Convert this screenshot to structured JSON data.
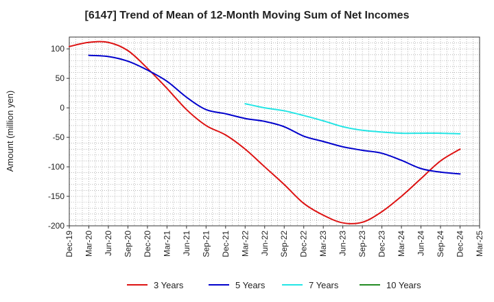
{
  "chart_data": {
    "type": "line",
    "title": "[6147]  Trend of Mean of 12-Month Moving Sum of Net Incomes",
    "xlabel": "",
    "ylabel": "Amount (million yen)",
    "ylim": [
      -200,
      120
    ],
    "yticks": [
      100,
      50,
      0,
      -50,
      -100,
      -150,
      -200
    ],
    "x_tick_labels": [
      "Dec-19",
      "Mar-20",
      "Jun-20",
      "Sep-20",
      "Dec-20",
      "Mar-21",
      "Jun-21",
      "Sep-21",
      "Dec-21",
      "Mar-22",
      "Jun-22",
      "Sep-22",
      "Dec-22",
      "Mar-23",
      "Jun-23",
      "Sep-23",
      "Dec-23",
      "Mar-24",
      "Jun-24",
      "Sep-24",
      "Dec-24",
      "Mar-25"
    ],
    "grid": true,
    "legend_position": "bottom",
    "series": [
      {
        "name": "3 Years",
        "color": "#dd1111",
        "points": [
          [
            0,
            104
          ],
          [
            1,
            111
          ],
          [
            2,
            111
          ],
          [
            3,
            97
          ],
          [
            4,
            67
          ],
          [
            5,
            33
          ],
          [
            6,
            -3
          ],
          [
            7,
            -30
          ],
          [
            8,
            -46
          ],
          [
            9,
            -70
          ],
          [
            10,
            -100
          ],
          [
            11,
            -130
          ],
          [
            12,
            -162
          ],
          [
            13,
            -182
          ],
          [
            14,
            -195
          ],
          [
            15,
            -194
          ],
          [
            16,
            -176
          ],
          [
            17,
            -150
          ],
          [
            18,
            -120
          ],
          [
            19,
            -90
          ],
          [
            20,
            -70
          ]
        ]
      },
      {
        "name": "5 Years",
        "color": "#0000cc",
        "points": [
          [
            1,
            89
          ],
          [
            2,
            87
          ],
          [
            3,
            79
          ],
          [
            4,
            64
          ],
          [
            5,
            45
          ],
          [
            6,
            18
          ],
          [
            7,
            -3
          ],
          [
            8,
            -10
          ],
          [
            9,
            -18
          ],
          [
            10,
            -23
          ],
          [
            11,
            -32
          ],
          [
            12,
            -48
          ],
          [
            13,
            -57
          ],
          [
            14,
            -66
          ],
          [
            15,
            -72
          ],
          [
            16,
            -77
          ],
          [
            17,
            -89
          ],
          [
            18,
            -103
          ],
          [
            19,
            -109
          ],
          [
            20,
            -112
          ]
        ]
      },
      {
        "name": "7 Years",
        "color": "#22e5e5",
        "points": [
          [
            9,
            7
          ],
          [
            10,
            0
          ],
          [
            11,
            -5
          ],
          [
            12,
            -13
          ],
          [
            13,
            -22
          ],
          [
            14,
            -32
          ],
          [
            15,
            -38
          ],
          [
            16,
            -41
          ],
          [
            17,
            -43
          ],
          [
            18,
            -43
          ],
          [
            19,
            -43
          ],
          [
            20,
            -44
          ]
        ]
      },
      {
        "name": "10 Years",
        "color": "#228B22",
        "points": []
      }
    ]
  }
}
